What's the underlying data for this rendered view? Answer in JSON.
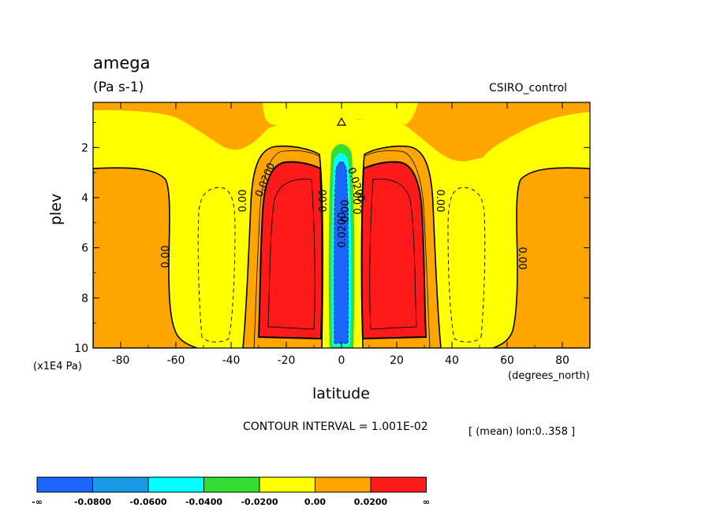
{
  "chart_data": {
    "type": "heatmap",
    "title": "amega",
    "units": "(Pa s-1)",
    "dataset": "CSIRO_control",
    "xlabel": "latitude",
    "ylabel": "plev",
    "x_unit": "(degrees_north)",
    "y_unit": "(x1E4 Pa)",
    "xlim": [
      -90,
      90
    ],
    "ylim": [
      10,
      0.2
    ],
    "x_ticks": [
      "-80",
      "-60",
      "-40",
      "-20",
      "0",
      "20",
      "40",
      "60",
      "80"
    ],
    "y_ticks": [
      "2",
      "4",
      "6",
      "8",
      "10"
    ],
    "contour_interval_text": "CONTOUR INTERVAL = 1.001E-02",
    "mean_text": "[ (mean) lon:0..358 ]",
    "contour_labels": [
      "0.00",
      "0.0200",
      "0.00",
      "0.0200",
      "0.00",
      "0.00",
      "0.0200",
      "0.00",
      "0.00",
      "0.00"
    ],
    "colorbar": {
      "levels": [
        "-∞",
        "-0.0800",
        "-0.0600",
        "-0.0400",
        "-0.0200",
        "0.00",
        "0.0200",
        "∞"
      ],
      "colors": [
        "#1a66ff",
        "#1a9ae6",
        "#00ffff",
        "#33dd33",
        "#ffff00",
        "#ffa500",
        "#ff1a1a"
      ]
    },
    "regions": [
      {
        "name": "yellow-background",
        "value_range": [
          -0.02,
          0.0
        ],
        "color": "#ffff00"
      },
      {
        "name": "orange-polar-south",
        "lat": [
          -90,
          -60
        ],
        "value_range": [
          0.0,
          0.02
        ],
        "color": "#ffa500"
      },
      {
        "name": "orange-polar-north",
        "lat": [
          63,
          90
        ],
        "value_range": [
          0.0,
          0.02
        ],
        "color": "#ffa500"
      },
      {
        "name": "red-subsidence-south",
        "lat": [
          -28,
          -8
        ],
        "plev": [
          2.5,
          9.7
        ],
        "value_range": [
          0.02,
          1
        ],
        "color": "#ff1a1a"
      },
      {
        "name": "red-subsidence-north",
        "lat": [
          8,
          28
        ],
        "plev": [
          2.5,
          9.7
        ],
        "value_range": [
          0.02,
          1
        ],
        "color": "#ff1a1a"
      },
      {
        "name": "blue-ascent-equator",
        "lat": [
          -3,
          4
        ],
        "plev": [
          2.2,
          9.8
        ],
        "value_range": [
          -1,
          -0.08
        ],
        "color": "#1a66ff"
      }
    ]
  }
}
